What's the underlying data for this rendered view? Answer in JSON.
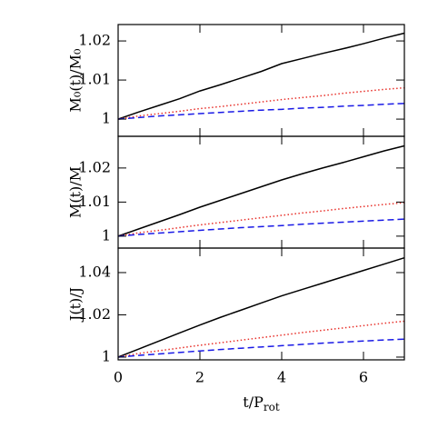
{
  "chart_data": [
    {
      "type": "line",
      "ylabel": "M₀(t)/M₀",
      "x": [
        0,
        0.5,
        1,
        1.5,
        2,
        2.5,
        3,
        3.5,
        4,
        4.5,
        5,
        5.5,
        6,
        6.5,
        7
      ],
      "xlim": [
        0,
        7
      ],
      "xticks": [
        0,
        2,
        4,
        6
      ],
      "ylim": [
        0.9956,
        1.0242
      ],
      "yticks": [
        1,
        1.01,
        1.02
      ],
      "series": [
        {
          "color": "#000000",
          "style": "solid",
          "values": [
            1,
            1.0018,
            1.0035,
            1.0052,
            1.0072,
            1.0088,
            1.0105,
            1.0122,
            1.0142,
            1.0155,
            1.0168,
            1.018,
            1.0193,
            1.0207,
            1.022
          ]
        },
        {
          "color": "#e8302a",
          "style": "dotted",
          "values": [
            1,
            1.0008,
            1.0014,
            1.002,
            1.0027,
            1.0032,
            1.0038,
            1.0044,
            1.005,
            1.0055,
            1.006,
            1.0066,
            1.0071,
            1.0076,
            1.008
          ]
        },
        {
          "color": "#1a1ae6",
          "style": "dashed",
          "values": [
            1,
            1.0004,
            1.0008,
            1.0011,
            1.0014,
            1.0017,
            1.002,
            1.0023,
            1.0025,
            1.0028,
            1.003,
            1.0033,
            1.0035,
            1.0038,
            1.004
          ]
        }
      ]
    },
    {
      "type": "line",
      "ylabel": "M(t)/M",
      "x": [
        0,
        0.5,
        1,
        1.5,
        2,
        2.5,
        3,
        3.5,
        4,
        4.5,
        5,
        5.5,
        6,
        6.5,
        7
      ],
      "xlim": [
        0,
        7
      ],
      "xticks": [
        0,
        2,
        4,
        6
      ],
      "ylim": [
        0.9965,
        1.0293
      ],
      "yticks": [
        1,
        1.01,
        1.02
      ],
      "series": [
        {
          "color": "#000000",
          "style": "solid",
          "values": [
            1,
            1.0021,
            1.0042,
            1.0063,
            1.0085,
            1.0105,
            1.0125,
            1.0145,
            1.0165,
            1.0183,
            1.02,
            1.0216,
            1.0233,
            1.025,
            1.0265
          ]
        },
        {
          "color": "#e8302a",
          "style": "dotted",
          "values": [
            1,
            1.001,
            1.0017,
            1.0025,
            1.0033,
            1.004,
            1.0047,
            1.0054,
            1.0061,
            1.0068,
            1.0074,
            1.0081,
            1.0087,
            1.0093,
            1.0098
          ]
        },
        {
          "color": "#1a1ae6",
          "style": "dashed",
          "values": [
            1,
            1.0005,
            1.0009,
            1.0013,
            1.0017,
            1.0021,
            1.0025,
            1.0028,
            1.0031,
            1.0035,
            1.0038,
            1.0041,
            1.0044,
            1.0047,
            1.005
          ]
        }
      ]
    },
    {
      "type": "line",
      "ylabel": "J(t)/J",
      "xlabel": {
        "text": "t/P",
        "subscript": "rot"
      },
      "x": [
        0,
        0.5,
        1,
        1.5,
        2,
        2.5,
        3,
        3.5,
        4,
        4.5,
        5,
        5.5,
        6,
        6.5,
        7
      ],
      "xlim": [
        0,
        7
      ],
      "xticks": [
        0,
        2,
        4,
        6
      ],
      "ylim": [
        0.9987,
        1.0516
      ],
      "yticks": [
        1,
        1.02,
        1.04
      ],
      "series": [
        {
          "color": "#000000",
          "style": "solid",
          "values": [
            1,
            1.0038,
            1.0076,
            1.0114,
            1.0152,
            1.0188,
            1.0222,
            1.0256,
            1.029,
            1.032,
            1.035,
            1.038,
            1.041,
            1.044,
            1.047
          ]
        },
        {
          "color": "#e8302a",
          "style": "dotted",
          "values": [
            1,
            1.0017,
            1.003,
            1.0043,
            1.0056,
            1.0068,
            1.008,
            1.0092,
            1.0104,
            1.0116,
            1.0127,
            1.0138,
            1.0149,
            1.016,
            1.017
          ]
        },
        {
          "color": "#1a1ae6",
          "style": "dashed",
          "values": [
            1,
            1.0008,
            1.0015,
            1.0022,
            1.0029,
            1.0036,
            1.0042,
            1.0048,
            1.0054,
            1.006,
            1.0066,
            1.0071,
            1.0076,
            1.0081,
            1.0085
          ]
        }
      ]
    }
  ]
}
